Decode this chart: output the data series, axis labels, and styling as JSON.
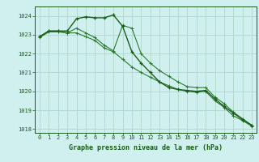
{
  "title": "Graphe pression niveau de la mer (hPa)",
  "background_color": "#cff0ee",
  "grid_color": "#b0d8cc",
  "line_color_dark": "#1a5c1a",
  "line_color_mid": "#2d7a2d",
  "xlim_min": -0.5,
  "xlim_max": 23.5,
  "ylim_min": 1017.8,
  "ylim_max": 1024.5,
  "yticks": [
    1018,
    1019,
    1020,
    1021,
    1022,
    1023,
    1024
  ],
  "xticks": [
    0,
    1,
    2,
    3,
    4,
    5,
    6,
    7,
    8,
    9,
    10,
    11,
    12,
    13,
    14,
    15,
    16,
    17,
    18,
    19,
    20,
    21,
    22,
    23
  ],
  "series1_x": [
    0,
    1,
    2,
    3,
    4,
    5,
    6,
    7,
    8,
    9,
    10,
    11,
    12,
    13,
    14,
    15,
    16,
    17,
    18,
    19,
    20,
    21,
    22,
    23
  ],
  "series1_y": [
    1022.9,
    1023.2,
    1023.2,
    1023.2,
    1023.85,
    1023.95,
    1023.9,
    1023.9,
    1024.05,
    1023.45,
    1022.1,
    1021.5,
    1021.0,
    1020.5,
    1020.2,
    1020.1,
    1020.05,
    1020.0,
    1020.05,
    1019.6,
    1019.2,
    1018.85,
    1018.5,
    1018.2
  ],
  "series2_x": [
    0,
    1,
    2,
    3,
    4,
    5,
    6,
    7,
    8,
    9,
    10,
    11,
    12,
    13,
    14,
    15,
    16,
    17,
    18,
    19,
    20,
    21,
    22,
    23
  ],
  "series2_y": [
    1022.9,
    1023.2,
    1023.2,
    1023.1,
    1023.35,
    1023.1,
    1022.85,
    1022.45,
    1022.15,
    1023.5,
    1023.35,
    1022.0,
    1021.5,
    1021.1,
    1020.8,
    1020.5,
    1020.25,
    1020.2,
    1020.2,
    1019.7,
    1019.35,
    1018.9,
    1018.55,
    1018.2
  ],
  "series3_x": [
    0,
    1,
    2,
    3,
    4,
    5,
    6,
    7,
    8,
    9,
    10,
    11,
    12,
    13,
    14,
    15,
    16,
    17,
    18,
    19,
    20,
    21,
    22,
    23
  ],
  "series3_y": [
    1022.85,
    1023.15,
    1023.15,
    1023.1,
    1023.1,
    1022.9,
    1022.7,
    1022.3,
    1022.1,
    1021.7,
    1021.3,
    1021.0,
    1020.75,
    1020.5,
    1020.3,
    1020.1,
    1020.0,
    1019.95,
    1020.0,
    1019.5,
    1019.15,
    1018.7,
    1018.45,
    1018.15
  ],
  "xlabel_fontsize": 6.0,
  "tick_fontsize": 5.0,
  "ylabel_fontsize": 5.0
}
